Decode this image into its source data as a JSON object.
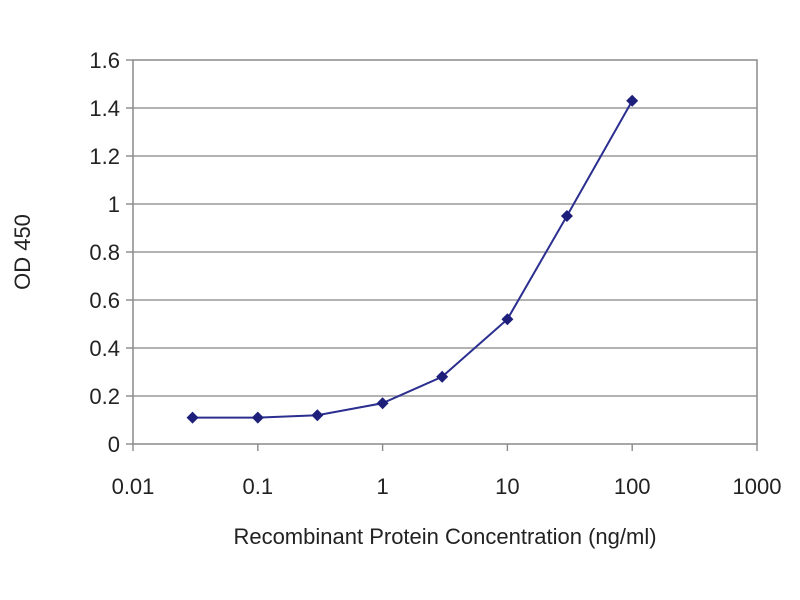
{
  "chart_data": {
    "type": "line",
    "title": "",
    "xlabel": "Recombinant Protein Concentration (ng/ml)",
    "ylabel": "OD 450",
    "x_scale": "log",
    "xlim": [
      0.01,
      1000
    ],
    "ylim": [
      0,
      1.6
    ],
    "x_ticks": [
      "0.01",
      "0.1",
      "1",
      "10",
      "100",
      "1000"
    ],
    "y_ticks": [
      "0",
      "0.2",
      "0.4",
      "0.6",
      "0.8",
      "1",
      "1.2",
      "1.4",
      "1.6"
    ],
    "grid": "horizontal",
    "legend": "none",
    "series": [
      {
        "x": [
          0.03,
          0.1,
          0.3,
          1,
          3,
          10,
          30,
          100
        ],
        "y": [
          0.11,
          0.11,
          0.12,
          0.17,
          0.28,
          0.52,
          0.95,
          1.43
        ]
      }
    ],
    "colors": {
      "line": "#2b2f8f",
      "marker": "#1d1f7a",
      "grid": "#9a9a9a",
      "frame": "#8a8a8a"
    }
  }
}
